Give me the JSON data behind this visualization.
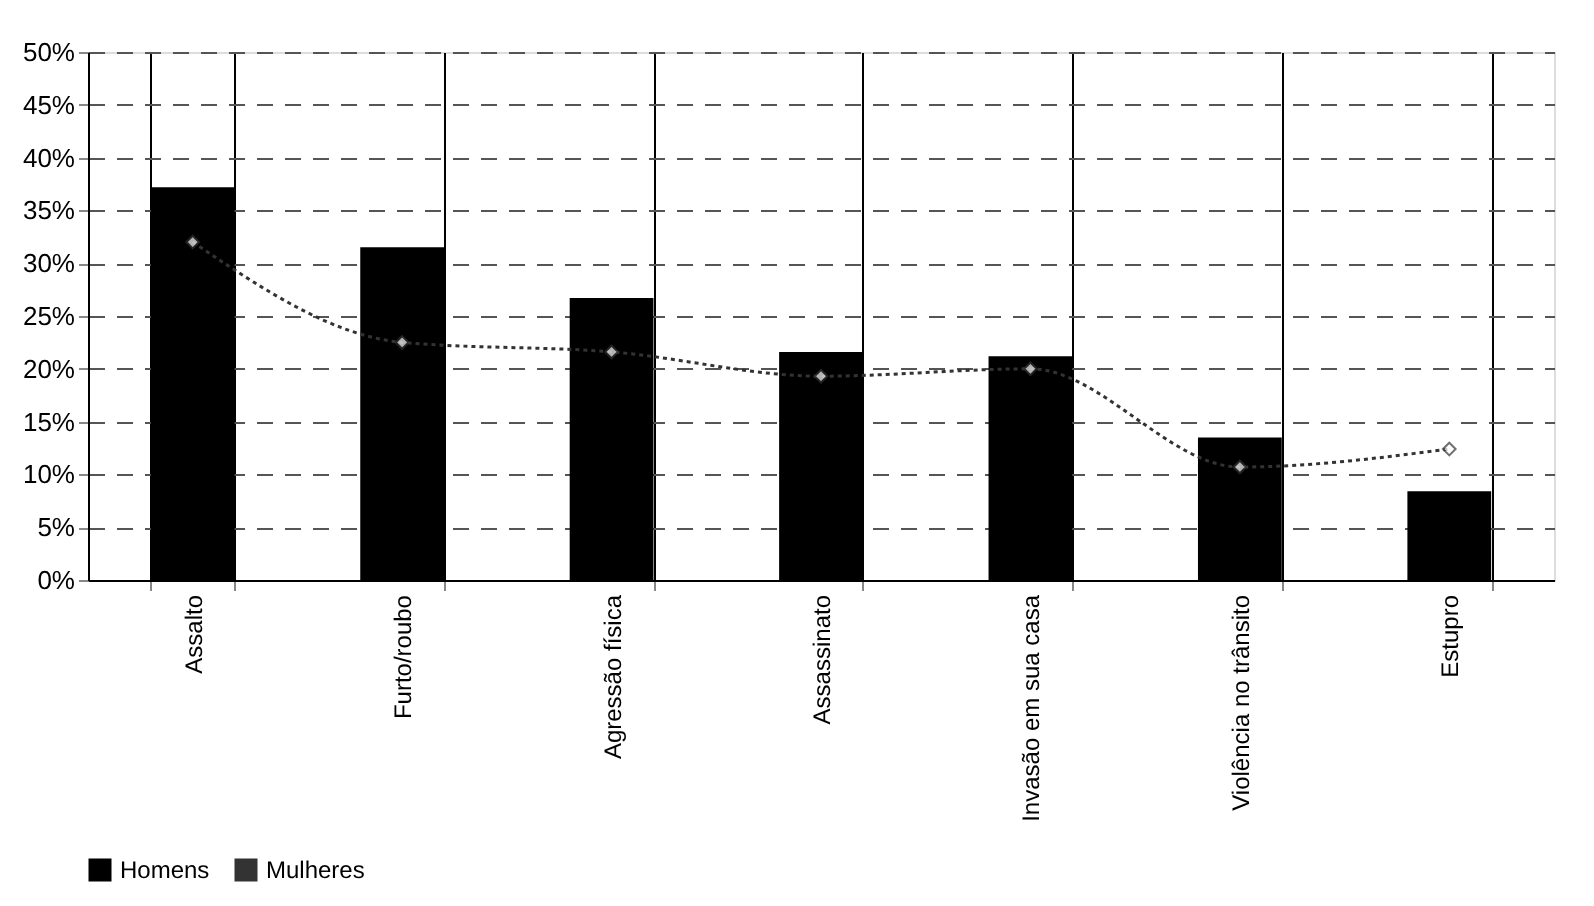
{
  "chart_data": {
    "type": "bar",
    "categories": [
      "Assalto",
      "Furto/roubo",
      "Agressão física",
      "Assassinato",
      "Invasão em sua casa",
      "Violência no trânsito",
      "Estupro"
    ],
    "series": [
      {
        "name": "Homens",
        "color": "#000000",
        "values": [
          37.2,
          31.5,
          26.7,
          21.6,
          21.2,
          13.5,
          8.4
        ]
      },
      {
        "name": "Mulheres",
        "type": "line",
        "color": "#333333",
        "marker": "diamond",
        "line_style": "dotted",
        "values": [
          32,
          22.5,
          21.6,
          19.3,
          20,
          10.7,
          12.4
        ]
      }
    ],
    "ylim": [
      0,
      50
    ],
    "yticks": [
      {
        "value": 0,
        "label": "0%"
      },
      {
        "value": 5,
        "label": "5%"
      },
      {
        "value": 10,
        "label": "10%"
      },
      {
        "value": 15,
        "label": "15%"
      },
      {
        "value": 20,
        "label": "20%"
      },
      {
        "value": 25,
        "label": "25%"
      },
      {
        "value": 30,
        "label": "30%"
      },
      {
        "value": 35,
        "label": "35%"
      },
      {
        "value": 40,
        "label": "40%"
      },
      {
        "value": 45,
        "label": "45%"
      },
      {
        "value": 50,
        "label": "50%"
      }
    ],
    "grid": true,
    "legend": "bottom"
  }
}
